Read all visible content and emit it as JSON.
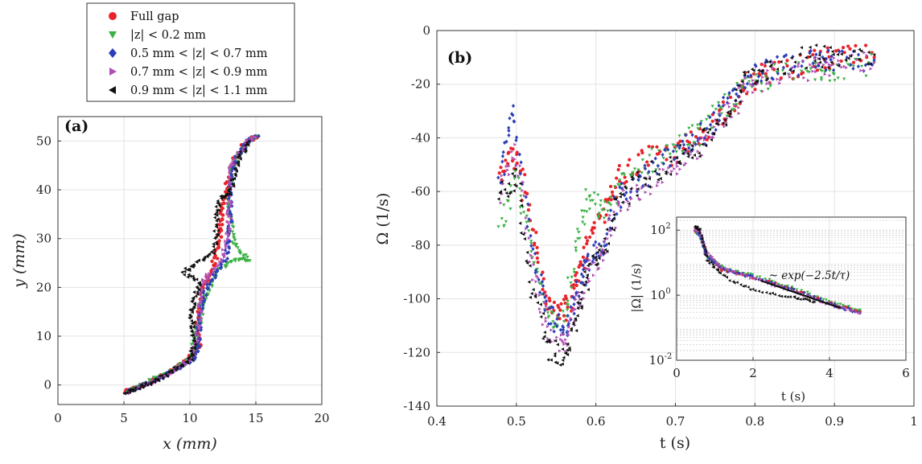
{
  "colors": {
    "full_gap": "#e8232a",
    "z_02": "#3cb044",
    "z_05_07": "#2d3fb8",
    "z_07_09": "#b14fb4",
    "z_09_11": "#111111"
  },
  "legend": {
    "placement": "top-left-between-panels",
    "entries": [
      {
        "label": "Full gap",
        "marker": "circle",
        "color": "#e8232a"
      },
      {
        "label": "|z| < 0.2 mm",
        "marker": "triangle-down",
        "color": "#3cb044"
      },
      {
        "label": "0.5 mm < |z| < 0.7 mm",
        "marker": "diamond",
        "color": "#2d3fb8"
      },
      {
        "label": "0.7 mm < |z| < 0.9 mm",
        "marker": "triangle-right",
        "color": "#b14fb4"
      },
      {
        "label": "0.9 mm < |z| < 1.1 mm",
        "marker": "triangle-left",
        "color": "#111111"
      }
    ]
  },
  "chart_data": [
    {
      "type": "scatter",
      "panel_label": "(a)",
      "xlabel": "x (mm)",
      "ylabel": "y (mm)",
      "xlim": [
        0,
        20
      ],
      "ylim": [
        -4,
        55
      ],
      "xticks": [
        0,
        5,
        10,
        15,
        20
      ],
      "yticks": [
        0,
        10,
        20,
        30,
        40,
        50
      ],
      "grid": true,
      "series": [
        {
          "name": "Full gap",
          "points": [
            [
              5,
              -1.5
            ],
            [
              6,
              -0.5
            ],
            [
              7,
              0.8
            ],
            [
              8,
              2
            ],
            [
              9,
              3.5
            ],
            [
              10,
              5.5
            ],
            [
              10.8,
              8
            ],
            [
              10.5,
              12
            ],
            [
              10.8,
              16
            ],
            [
              11,
              20
            ],
            [
              11.6,
              23
            ],
            [
              12,
              27
            ],
            [
              12.3,
              31
            ],
            [
              12.4,
              35
            ],
            [
              12.7,
              39
            ],
            [
              13,
              43
            ],
            [
              13.5,
              47
            ],
            [
              14.3,
              50
            ],
            [
              15.2,
              51
            ]
          ]
        },
        {
          "name": "|z| < 0.2 mm",
          "points": [
            [
              5.2,
              -1.5
            ],
            [
              6,
              -0.5
            ],
            [
              7,
              1
            ],
            [
              8,
              2
            ],
            [
              9,
              3.5
            ],
            [
              9.8,
              5
            ],
            [
              10.3,
              7
            ],
            [
              10.3,
              10.5
            ],
            [
              10.8,
              13
            ],
            [
              11,
              17
            ],
            [
              11.5,
              20
            ],
            [
              12,
              23
            ],
            [
              12.8,
              25
            ],
            [
              13.8,
              25.8
            ],
            [
              14.5,
              25.5
            ],
            [
              13.5,
              28
            ],
            [
              13.2,
              31
            ],
            [
              13,
              35
            ],
            [
              13,
              39
            ],
            [
              13.2,
              44
            ],
            [
              13.6,
              47
            ],
            [
              14.4,
              50
            ],
            [
              15.2,
              51
            ]
          ]
        },
        {
          "name": "0.5 mm < |z| < 0.7 mm",
          "points": [
            [
              5.2,
              -1.5
            ],
            [
              6.2,
              -0.3
            ],
            [
              7.2,
              0.8
            ],
            [
              8.2,
              2
            ],
            [
              9.2,
              3.5
            ],
            [
              10.2,
              5
            ],
            [
              10.6,
              8
            ],
            [
              10.7,
              12
            ],
            [
              10.9,
              16
            ],
            [
              11.3,
              20
            ],
            [
              12,
              23
            ],
            [
              12.7,
              26
            ],
            [
              13,
              30
            ],
            [
              13.1,
              34
            ],
            [
              13,
              38
            ],
            [
              13.1,
              43
            ],
            [
              13.6,
              47
            ],
            [
              14.4,
              50
            ],
            [
              15.2,
              51
            ]
          ]
        },
        {
          "name": "0.7 mm < |z| < 0.9 mm",
          "points": [
            [
              5.3,
              -1.5
            ],
            [
              6.3,
              -0.3
            ],
            [
              7.3,
              0.8
            ],
            [
              8.3,
              2.2
            ],
            [
              9.3,
              3.8
            ],
            [
              10.2,
              5.5
            ],
            [
              10.5,
              9
            ],
            [
              10.7,
              13
            ],
            [
              10.8,
              17
            ],
            [
              11,
              21
            ],
            [
              11.5,
              23
            ],
            [
              12.5,
              26
            ],
            [
              12.8,
              30
            ],
            [
              13,
              34
            ],
            [
              13,
              38
            ],
            [
              13,
              44
            ],
            [
              13.6,
              47
            ],
            [
              14.4,
              50
            ],
            [
              15,
              50.8
            ]
          ]
        },
        {
          "name": "0.9 mm < |z| < 1.1 mm",
          "points": [
            [
              5.1,
              -1.5
            ],
            [
              6,
              -0.8
            ],
            [
              7,
              0.5
            ],
            [
              8,
              1.8
            ],
            [
              9,
              3.5
            ],
            [
              10,
              5
            ],
            [
              10.3,
              8
            ],
            [
              10.2,
              12
            ],
            [
              10.1,
              15
            ],
            [
              10.3,
              18
            ],
            [
              10.8,
              21
            ],
            [
              9.5,
              23
            ],
            [
              10.5,
              25
            ],
            [
              11.8,
              27
            ],
            [
              12,
              31
            ],
            [
              12,
              35
            ],
            [
              12.3,
              38.5
            ],
            [
              13,
              39
            ],
            [
              13.4,
              43
            ],
            [
              13.8,
              47
            ],
            [
              14.5,
              50
            ]
          ]
        }
      ]
    },
    {
      "type": "scatter",
      "panel_label": "(b)",
      "xlabel": "t (s)",
      "ylabel": "Ω (1/s)",
      "xlim": [
        0.4,
        1
      ],
      "ylim": [
        -140,
        0
      ],
      "xticks": [
        0.4,
        0.5,
        0.6,
        0.7,
        0.8,
        0.9,
        1
      ],
      "xticklabels": [
        "0.4",
        "0.5",
        "0.6",
        "0.7",
        "0.8",
        "0.9",
        "1"
      ],
      "yticks": [
        0,
        -20,
        -40,
        -60,
        -80,
        -100,
        -120,
        -140
      ],
      "grid": true,
      "series": [
        {
          "name": "Full gap",
          "points": [
            [
              0.48,
              -55
            ],
            [
              0.5,
              -45
            ],
            [
              0.52,
              -75
            ],
            [
              0.54,
              -100
            ],
            [
              0.56,
              -105
            ],
            [
              0.575,
              -95
            ],
            [
              0.59,
              -80
            ],
            [
              0.61,
              -68
            ],
            [
              0.63,
              -55
            ],
            [
              0.66,
              -48
            ],
            [
              0.7,
              -46
            ],
            [
              0.73,
              -40
            ],
            [
              0.76,
              -30
            ],
            [
              0.79,
              -20
            ],
            [
              0.82,
              -15
            ],
            [
              0.87,
              -12
            ],
            [
              0.9,
              -10
            ],
            [
              0.95,
              -10
            ]
          ]
        },
        {
          "name": "|z| < 0.2 mm",
          "points": [
            [
              0.48,
              -75
            ],
            [
              0.5,
              -55
            ],
            [
              0.52,
              -85
            ],
            [
              0.54,
              -105
            ],
            [
              0.56,
              -110
            ],
            [
              0.575,
              -80
            ],
            [
              0.59,
              -63
            ],
            [
              0.61,
              -68
            ],
            [
              0.63,
              -58
            ],
            [
              0.66,
              -50
            ],
            [
              0.7,
              -44
            ],
            [
              0.73,
              -38
            ],
            [
              0.76,
              -28
            ],
            [
              0.79,
              -22
            ],
            [
              0.82,
              -17
            ],
            [
              0.87,
              -15
            ],
            [
              0.9,
              -14
            ],
            [
              0.95,
              -12
            ]
          ]
        },
        {
          "name": "0.5 mm < |z| < 0.7 mm",
          "points": [
            [
              0.48,
              -55
            ],
            [
              0.495,
              -30
            ],
            [
              0.52,
              -80
            ],
            [
              0.54,
              -105
            ],
            [
              0.56,
              -113
            ],
            [
              0.575,
              -100
            ],
            [
              0.59,
              -88
            ],
            [
              0.61,
              -78
            ],
            [
              0.63,
              -62
            ],
            [
              0.66,
              -55
            ],
            [
              0.7,
              -46
            ],
            [
              0.73,
              -40
            ],
            [
              0.76,
              -30
            ],
            [
              0.79,
              -18
            ],
            [
              0.82,
              -14
            ],
            [
              0.87,
              -12
            ],
            [
              0.9,
              -11
            ],
            [
              0.95,
              -11
            ]
          ]
        },
        {
          "name": "0.7 mm < |z| < 0.9 mm",
          "points": [
            [
              0.48,
              -60
            ],
            [
              0.5,
              -45
            ],
            [
              0.52,
              -90
            ],
            [
              0.54,
              -112
            ],
            [
              0.56,
              -118
            ],
            [
              0.575,
              -105
            ],
            [
              0.59,
              -92
            ],
            [
              0.61,
              -80
            ],
            [
              0.63,
              -65
            ],
            [
              0.66,
              -58
            ],
            [
              0.7,
              -52
            ],
            [
              0.73,
              -45
            ],
            [
              0.76,
              -33
            ],
            [
              0.79,
              -22
            ],
            [
              0.82,
              -16
            ],
            [
              0.87,
              -14
            ],
            [
              0.9,
              -13
            ],
            [
              0.95,
              -12
            ]
          ]
        },
        {
          "name": "0.9 mm < |z| < 1.1 mm",
          "points": [
            [
              0.48,
              -60
            ],
            [
              0.5,
              -55
            ],
            [
              0.52,
              -95
            ],
            [
              0.54,
              -118
            ],
            [
              0.56,
              -122
            ],
            [
              0.575,
              -108
            ],
            [
              0.59,
              -90
            ],
            [
              0.61,
              -82
            ],
            [
              0.63,
              -63
            ],
            [
              0.66,
              -55
            ],
            [
              0.7,
              -48
            ],
            [
              0.73,
              -43
            ],
            [
              0.76,
              -33
            ],
            [
              0.79,
              -18
            ],
            [
              0.82,
              -13
            ],
            [
              0.87,
              -10
            ],
            [
              0.9,
              -9
            ],
            [
              0.95,
              -9
            ]
          ]
        }
      ]
    },
    {
      "type": "scatter",
      "panel_label": "inset",
      "xlabel": "t (s)",
      "ylabel": "|Ω| (1/s)",
      "xlim": [
        0,
        6
      ],
      "ylim_log10": [
        -2,
        2.4
      ],
      "yscale": "log",
      "xticks": [
        0,
        2,
        4,
        6
      ],
      "yticks_log10": [
        -2,
        0,
        2
      ],
      "annotation": "~ exp(−2.5t/τ)",
      "fit_line": [
        [
          2.2,
          0.45
        ],
        [
          4.3,
          -0.4
        ]
      ],
      "series": [
        {
          "name": "Full gap",
          "points": [
            [
              0.5,
              2.0
            ],
            [
              0.6,
              1.9
            ],
            [
              0.8,
              1.2
            ],
            [
              1.2,
              0.8
            ],
            [
              2,
              0.55
            ],
            [
              3,
              0.2
            ],
            [
              4,
              -0.25
            ],
            [
              4.8,
              -0.5
            ]
          ]
        },
        {
          "name": "|z| < 0.2 mm",
          "points": [
            [
              0.5,
              1.95
            ],
            [
              0.6,
              1.85
            ],
            [
              0.8,
              1.2
            ],
            [
              1.2,
              0.85
            ],
            [
              2,
              0.6
            ],
            [
              3,
              0.25
            ],
            [
              4,
              -0.2
            ],
            [
              4.8,
              -0.45
            ]
          ]
        },
        {
          "name": "0.5 mm < |z| < 0.7 mm",
          "points": [
            [
              0.5,
              2.05
            ],
            [
              0.6,
              1.9
            ],
            [
              0.8,
              1.2
            ],
            [
              1.2,
              0.8
            ],
            [
              2,
              0.55
            ],
            [
              3,
              0.18
            ],
            [
              4,
              -0.25
            ],
            [
              4.8,
              -0.55
            ]
          ]
        },
        {
          "name": "0.7 mm < |z| < 0.9 mm",
          "points": [
            [
              0.5,
              2.05
            ],
            [
              0.6,
              1.95
            ],
            [
              0.8,
              1.3
            ],
            [
              1.2,
              0.82
            ],
            [
              2,
              0.52
            ],
            [
              3,
              0.15
            ],
            [
              4,
              -0.28
            ],
            [
              4.8,
              -0.55
            ]
          ]
        },
        {
          "name": "0.9 mm < |z| < 1.1 mm",
          "points": [
            [
              0.5,
              2.1
            ],
            [
              0.6,
              2.0
            ],
            [
              0.8,
              1.1
            ],
            [
              1.2,
              0.6
            ],
            [
              2,
              0.15
            ],
            [
              3,
              -0.05
            ],
            [
              3.6,
              -0.2
            ]
          ]
        }
      ]
    }
  ]
}
